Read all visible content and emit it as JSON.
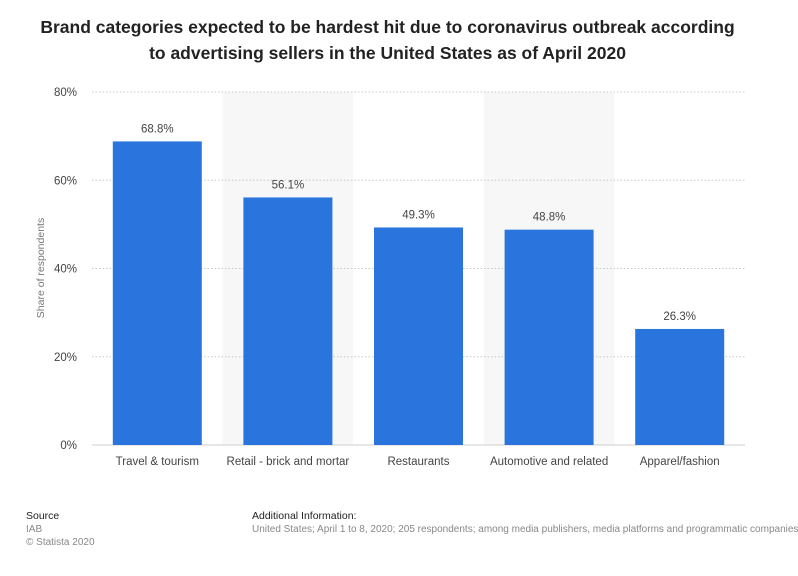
{
  "chart_data": {
    "type": "bar",
    "title": "Brand categories expected to be hardest hit due to coronavirus outbreak according to advertising sellers in the United States as of April 2020",
    "categories": [
      "Travel & tourism",
      "Retail - brick and mortar",
      "Restaurants",
      "Automotive and related",
      "Apparel/fashion"
    ],
    "values": [
      68.8,
      56.1,
      49.3,
      48.8,
      26.3
    ],
    "value_labels": [
      "68.8%",
      "56.1%",
      "49.3%",
      "48.8%",
      "26.3%"
    ],
    "xlabel": "",
    "ylabel": "Share of respondents",
    "ylim": [
      0,
      80
    ],
    "yticks": [
      0,
      20,
      40,
      60,
      80
    ],
    "ytick_labels": [
      "0%",
      "20%",
      "40%",
      "60%",
      "80%"
    ],
    "grid": true,
    "bar_color": "#2a75dd",
    "band_color": "#f7f7f7"
  },
  "footer": {
    "source_heading": "Source",
    "source_name": "IAB",
    "copyright": "© Statista 2020",
    "info_heading": "Additional Information:",
    "info_text": "United States; April 1 to 8, 2020; 205 respondents; among media publishers, media platforms and programmatic companies"
  }
}
